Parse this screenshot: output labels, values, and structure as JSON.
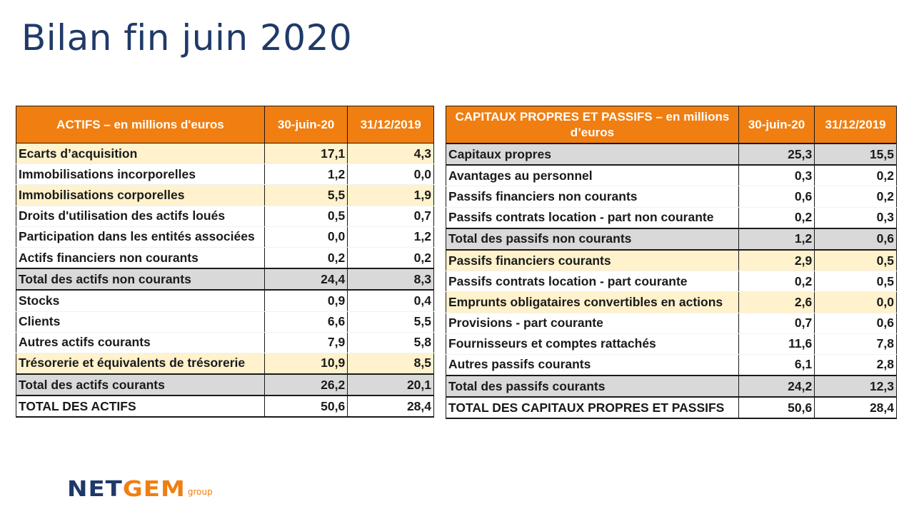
{
  "title": "Bilan fin juin 2020",
  "assets": {
    "header": {
      "label": "ACTIFS – en millions d'euros",
      "col1": "30-juin-20",
      "col2": "31/12/2019"
    },
    "rows": [
      {
        "label": "Ecarts d’acquisition",
        "v1": "17,1",
        "v2": "4,3",
        "style": "hl"
      },
      {
        "label": "Immobilisations incorporelles",
        "v1": "1,2",
        "v2": "0,0",
        "style": ""
      },
      {
        "label": "Immobilisations corporelles",
        "v1": "5,5",
        "v2": "1,9",
        "style": "hl"
      },
      {
        "label": "Droits d'utilisation des actifs loués",
        "v1": "0,5",
        "v2": "0,7",
        "style": ""
      },
      {
        "label": "Participation dans les entités associées",
        "v1": "0,0",
        "v2": "1,2",
        "style": ""
      },
      {
        "label": "Actifs financiers non courants",
        "v1": "0,2",
        "v2": "0,2",
        "style": ""
      },
      {
        "label": "Total des actifs non courants",
        "v1": "24,4",
        "v2": "8,3",
        "style": "total"
      },
      {
        "label": "Stocks",
        "v1": "0,9",
        "v2": "0,4",
        "style": ""
      },
      {
        "label": "Clients",
        "v1": "6,6",
        "v2": "5,5",
        "style": ""
      },
      {
        "label": "Autres actifs courants",
        "v1": "7,9",
        "v2": "5,8",
        "style": ""
      },
      {
        "label": "Trésorerie et équivalents de trésorerie",
        "v1": "10,9",
        "v2": "8,5",
        "style": "hl"
      },
      {
        "label": "Total des actifs courants",
        "v1": "26,2",
        "v2": "20,1",
        "style": "total"
      },
      {
        "label": "TOTAL DES ACTIFS",
        "v1": "50,6",
        "v2": "28,4",
        "style": "grand"
      }
    ]
  },
  "liabilities": {
    "header": {
      "label": "CAPITAUX PROPRES ET PASSIFS – en millions d’euros",
      "col1": "30-juin-20",
      "col2": "31/12/2019"
    },
    "rows": [
      {
        "label": "Capitaux propres",
        "v1": "25,3",
        "v2": "15,5",
        "style": "total"
      },
      {
        "label": "Avantages au personnel",
        "v1": "0,3",
        "v2": "0,2",
        "style": ""
      },
      {
        "label": "Passifs financiers non courants",
        "v1": "0,6",
        "v2": "0,2",
        "style": ""
      },
      {
        "label": "Passifs contrats location - part non courante",
        "v1": "0,2",
        "v2": "0,3",
        "style": ""
      },
      {
        "label": "Total des passifs non courants",
        "v1": "1,2",
        "v2": "0,6",
        "style": "total"
      },
      {
        "label": "Passifs financiers courants",
        "v1": "2,9",
        "v2": "0,5",
        "style": "hl"
      },
      {
        "label": "Passifs contrats location - part courante",
        "v1": "0,2",
        "v2": "0,5",
        "style": ""
      },
      {
        "label": "Emprunts obligataires convertibles en actions",
        "v1": "2,6",
        "v2": "0,0",
        "style": "hl"
      },
      {
        "label": "Provisions  - part courante",
        "v1": "0,7",
        "v2": "0,6",
        "style": ""
      },
      {
        "label": "Fournisseurs et comptes rattachés",
        "v1": "11,6",
        "v2": "7,8",
        "style": ""
      },
      {
        "label": "Autres passifs courants",
        "v1": "6,1",
        "v2": "2,8",
        "style": ""
      },
      {
        "label": "Total des passifs courants",
        "v1": "24,2",
        "v2": "12,3",
        "style": "total"
      },
      {
        "label": "TOTAL DES CAPITAUX PROPRES ET PASSIFS",
        "v1": "50,6",
        "v2": "28,4",
        "style": "grand"
      }
    ]
  },
  "logo": {
    "part1": "NET",
    "part2": "GEM",
    "suffix": "group"
  },
  "colors": {
    "title": "#1f3a68",
    "header_bg": "#f07e11",
    "highlight_bg": "#fff2cc",
    "total_bg": "#d9d9d9"
  }
}
